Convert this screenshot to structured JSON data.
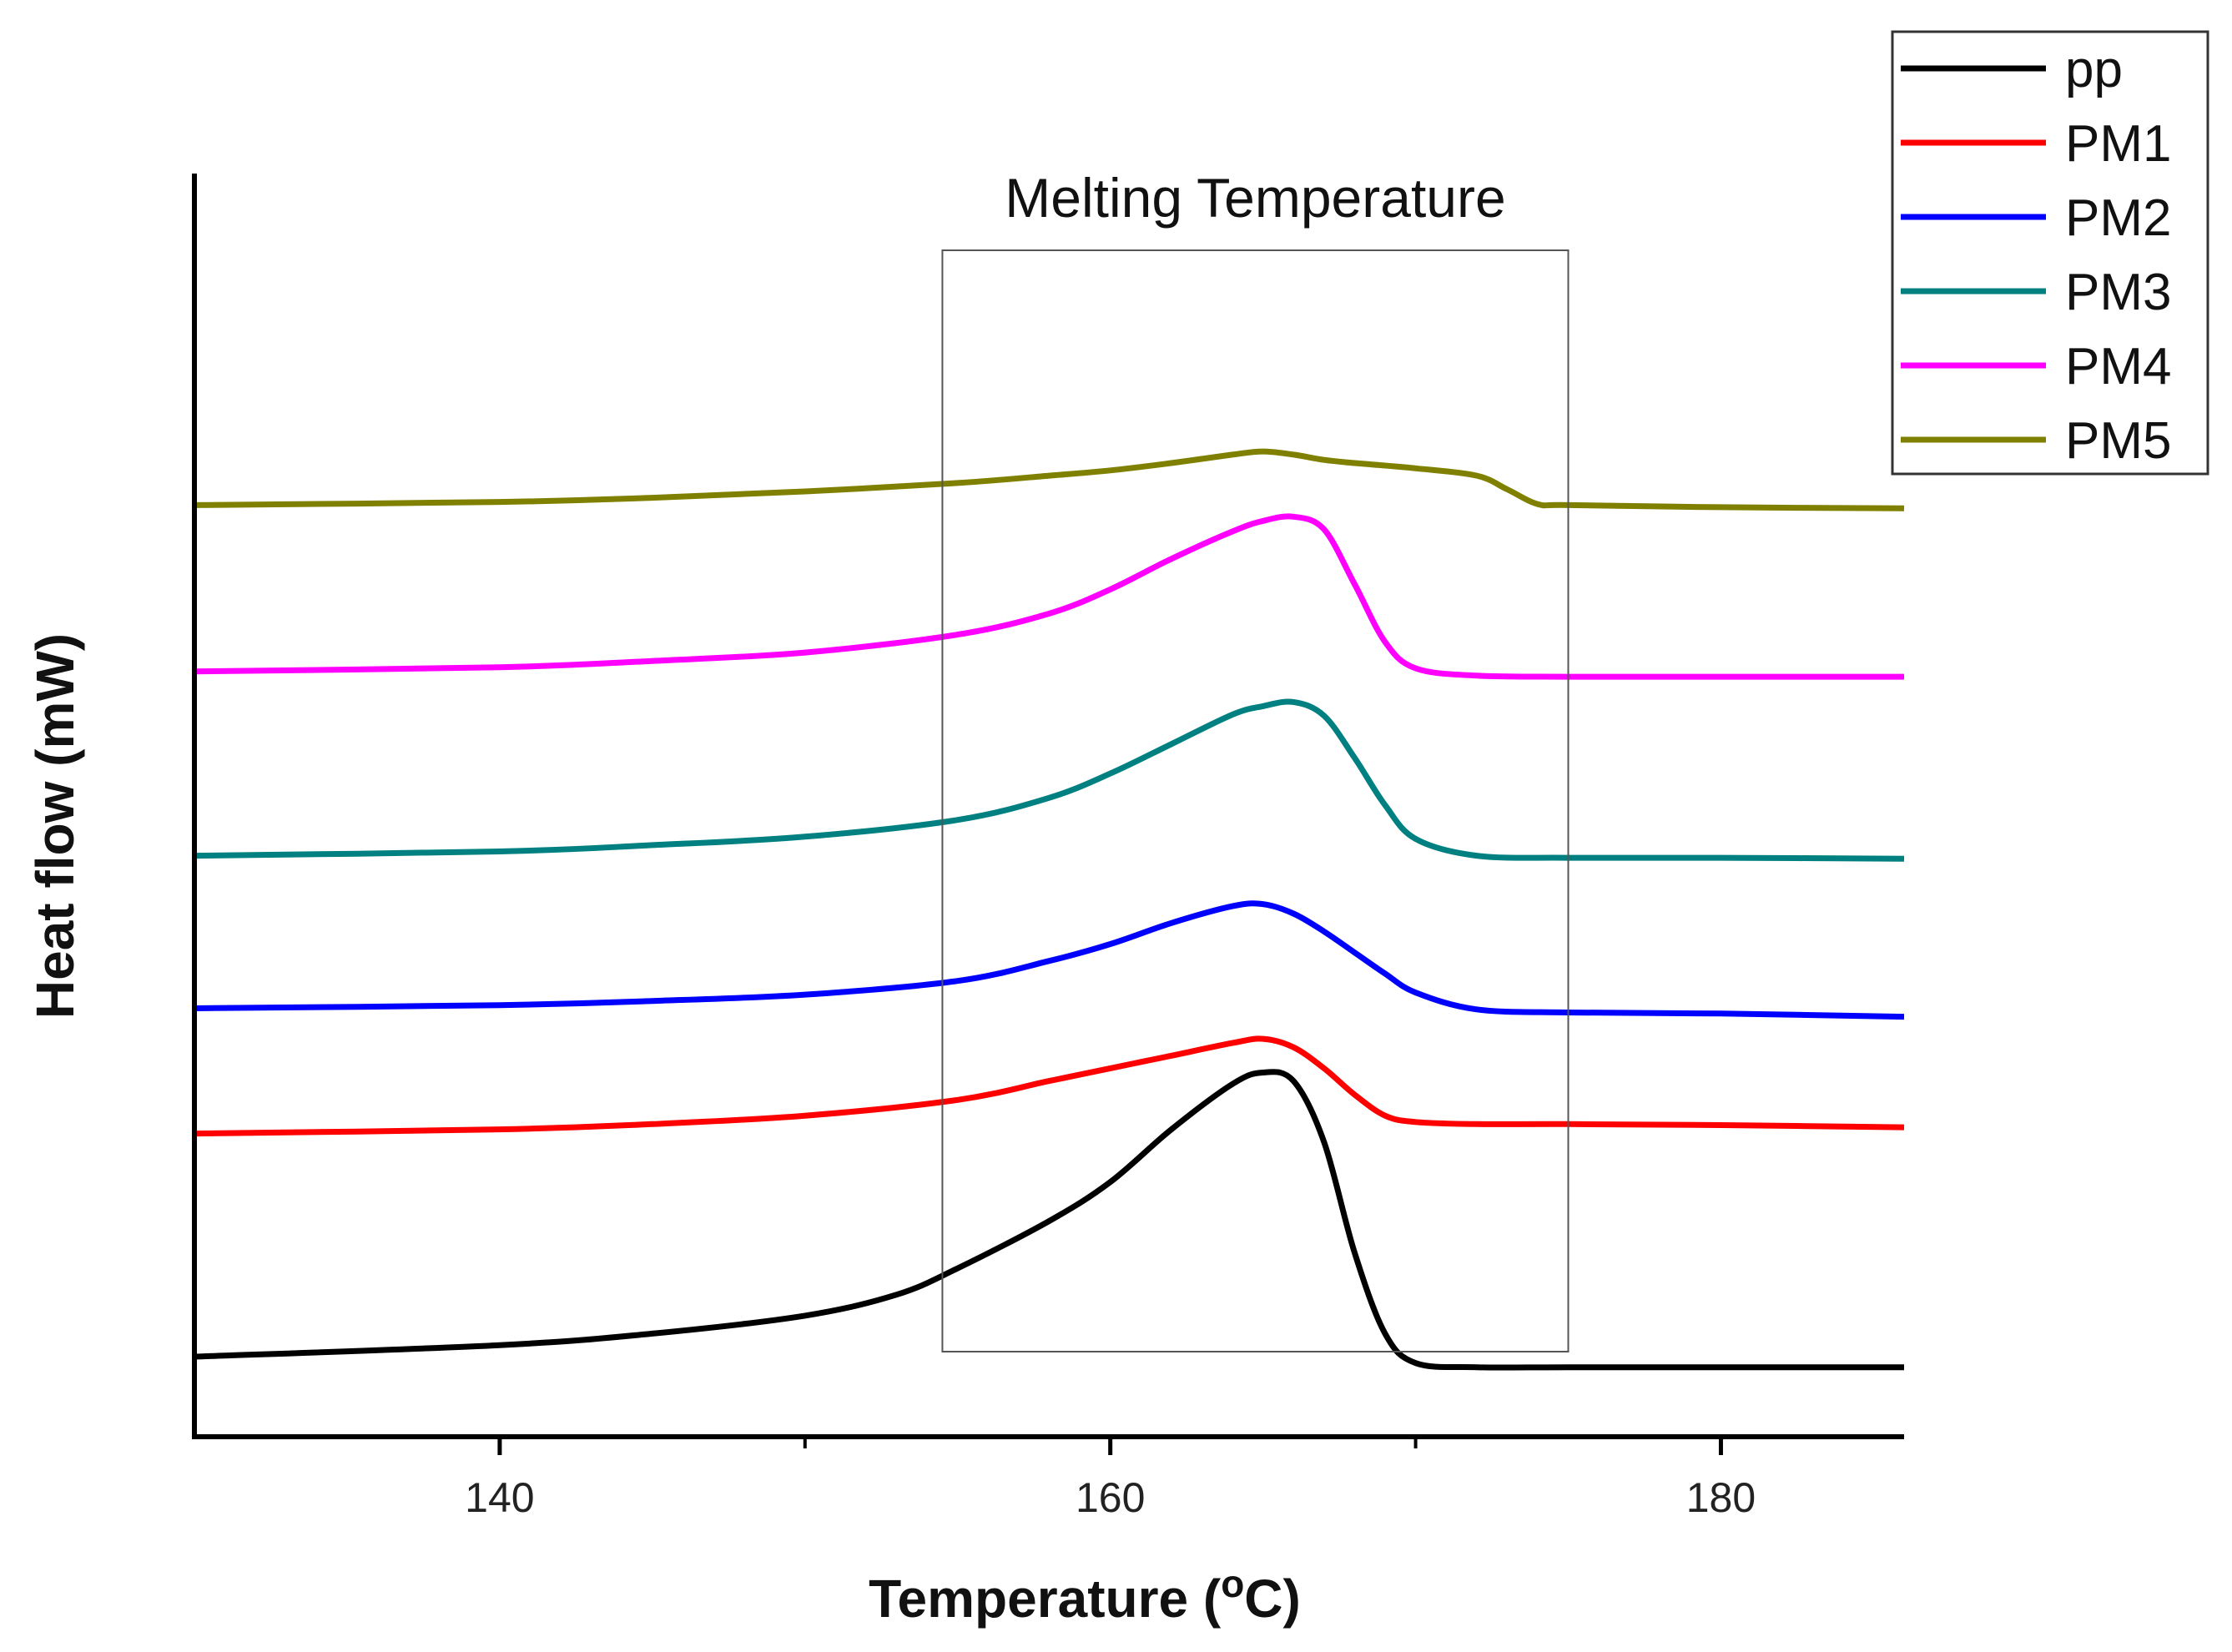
{
  "chart_data": {
    "type": "line",
    "title": "",
    "xlabel": "Temperature (",
    "xlabel_unit_sup": "o",
    "xlabel_unit": "C)",
    "ylabel": "Heat flow (mW)",
    "xlim": [
      130,
      186
    ],
    "ylim": [
      0,
      12
    ],
    "x_ticks": [
      140,
      160,
      180
    ],
    "x_minor_ticks": [
      150,
      170
    ],
    "y_ticks_shown": false,
    "annotation": {
      "text": "Melting Temperature",
      "x_range": [
        154.5,
        175
      ]
    },
    "legend_position": "top-right",
    "series": [
      {
        "name": "pp",
        "color": "#000000",
        "x": [
          130,
          140,
          145,
          150,
          153,
          155,
          158,
          160,
          162,
          164,
          165,
          166,
          167,
          168,
          169,
          170,
          172,
          175,
          180,
          186
        ],
        "y": [
          0.76,
          0.87,
          0.98,
          1.15,
          1.35,
          1.6,
          2.05,
          2.42,
          2.92,
          3.35,
          3.46,
          3.38,
          2.8,
          1.75,
          0.98,
          0.7,
          0.66,
          0.66,
          0.66,
          0.66
        ]
      },
      {
        "name": "PM1",
        "color": "#ff0000",
        "x": [
          130,
          140,
          145,
          150,
          155,
          158,
          160,
          162,
          164,
          165,
          166,
          167,
          168,
          169,
          170,
          172,
          175,
          180,
          186
        ],
        "y": [
          2.88,
          2.92,
          2.97,
          3.05,
          3.2,
          3.38,
          3.5,
          3.62,
          3.74,
          3.78,
          3.7,
          3.5,
          3.25,
          3.05,
          2.99,
          2.97,
          2.97,
          2.96,
          2.94
        ]
      },
      {
        "name": "PM2",
        "color": "#0000ff",
        "x": [
          130,
          140,
          145,
          150,
          155,
          158,
          160,
          162,
          164,
          165,
          166,
          167,
          168,
          169,
          170,
          172,
          175,
          180,
          186
        ],
        "y": [
          4.07,
          4.1,
          4.14,
          4.2,
          4.33,
          4.52,
          4.68,
          4.88,
          5.04,
          5.06,
          4.97,
          4.8,
          4.6,
          4.4,
          4.22,
          4.06,
          4.03,
          4.02,
          3.99
        ]
      },
      {
        "name": "PM3",
        "color": "#008080",
        "x": [
          130,
          140,
          145,
          150,
          155,
          158,
          160,
          162,
          164,
          165,
          166,
          167,
          168,
          169,
          170,
          172,
          175,
          180,
          186
        ],
        "y": [
          5.52,
          5.56,
          5.62,
          5.7,
          5.86,
          6.07,
          6.3,
          6.58,
          6.86,
          6.94,
          6.98,
          6.85,
          6.45,
          6.0,
          5.68,
          5.52,
          5.5,
          5.5,
          5.49
        ]
      },
      {
        "name": "PM4",
        "color": "#ff00ff",
        "x": [
          130,
          140,
          145,
          150,
          155,
          158,
          160,
          162,
          164,
          165,
          166,
          167,
          168,
          169,
          170,
          172,
          175,
          180,
          186
        ],
        "y": [
          7.27,
          7.31,
          7.37,
          7.45,
          7.62,
          7.82,
          8.05,
          8.34,
          8.6,
          8.7,
          8.74,
          8.62,
          8.1,
          7.55,
          7.3,
          7.23,
          7.22,
          7.22,
          7.22
        ]
      },
      {
        "name": "PM5",
        "color": "#808000",
        "x": [
          130,
          140,
          145,
          150,
          155,
          158,
          160,
          162,
          164,
          165,
          166,
          167,
          168,
          170,
          172,
          173,
          174,
          175,
          180,
          186
        ],
        "y": [
          8.85,
          8.88,
          8.92,
          8.98,
          9.06,
          9.13,
          9.18,
          9.25,
          9.33,
          9.36,
          9.33,
          9.28,
          9.25,
          9.2,
          9.13,
          9.0,
          8.86,
          8.85,
          8.83,
          8.82
        ]
      }
    ]
  }
}
